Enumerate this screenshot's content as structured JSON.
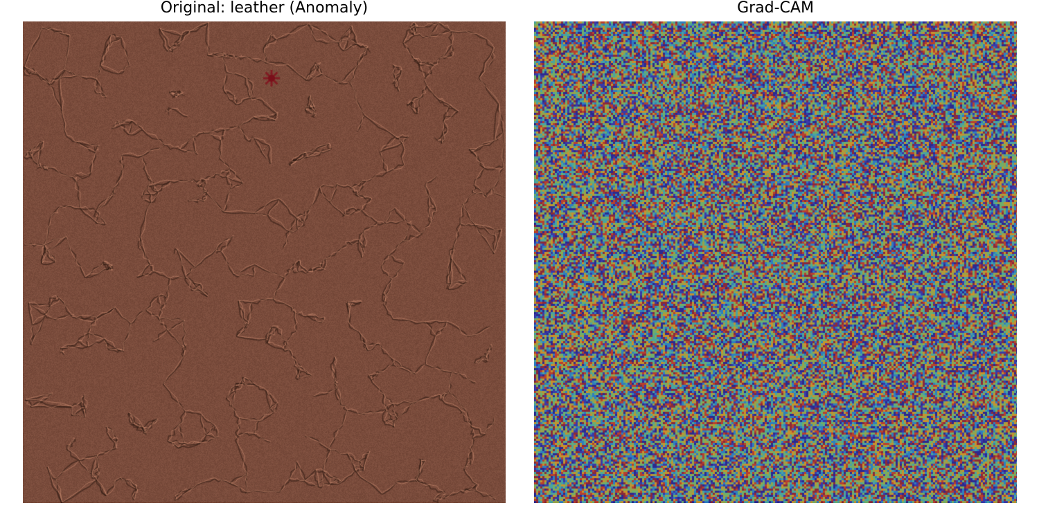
{
  "panels": {
    "left": {
      "title": "Original: leather (Anomaly)",
      "image_description_icon": "leather-texture-image",
      "base_color": "#7a4c3c"
    },
    "right": {
      "title": "Grad-CAM",
      "image_description_icon": "gradcam-heatmap-image",
      "palette": [
        "#2c2a8f",
        "#3a3aa8",
        "#2e7fbf",
        "#4aa3a0",
        "#6fae6a",
        "#98a24a",
        "#c6922e",
        "#b8402e",
        "#8a2a3a"
      ]
    }
  }
}
